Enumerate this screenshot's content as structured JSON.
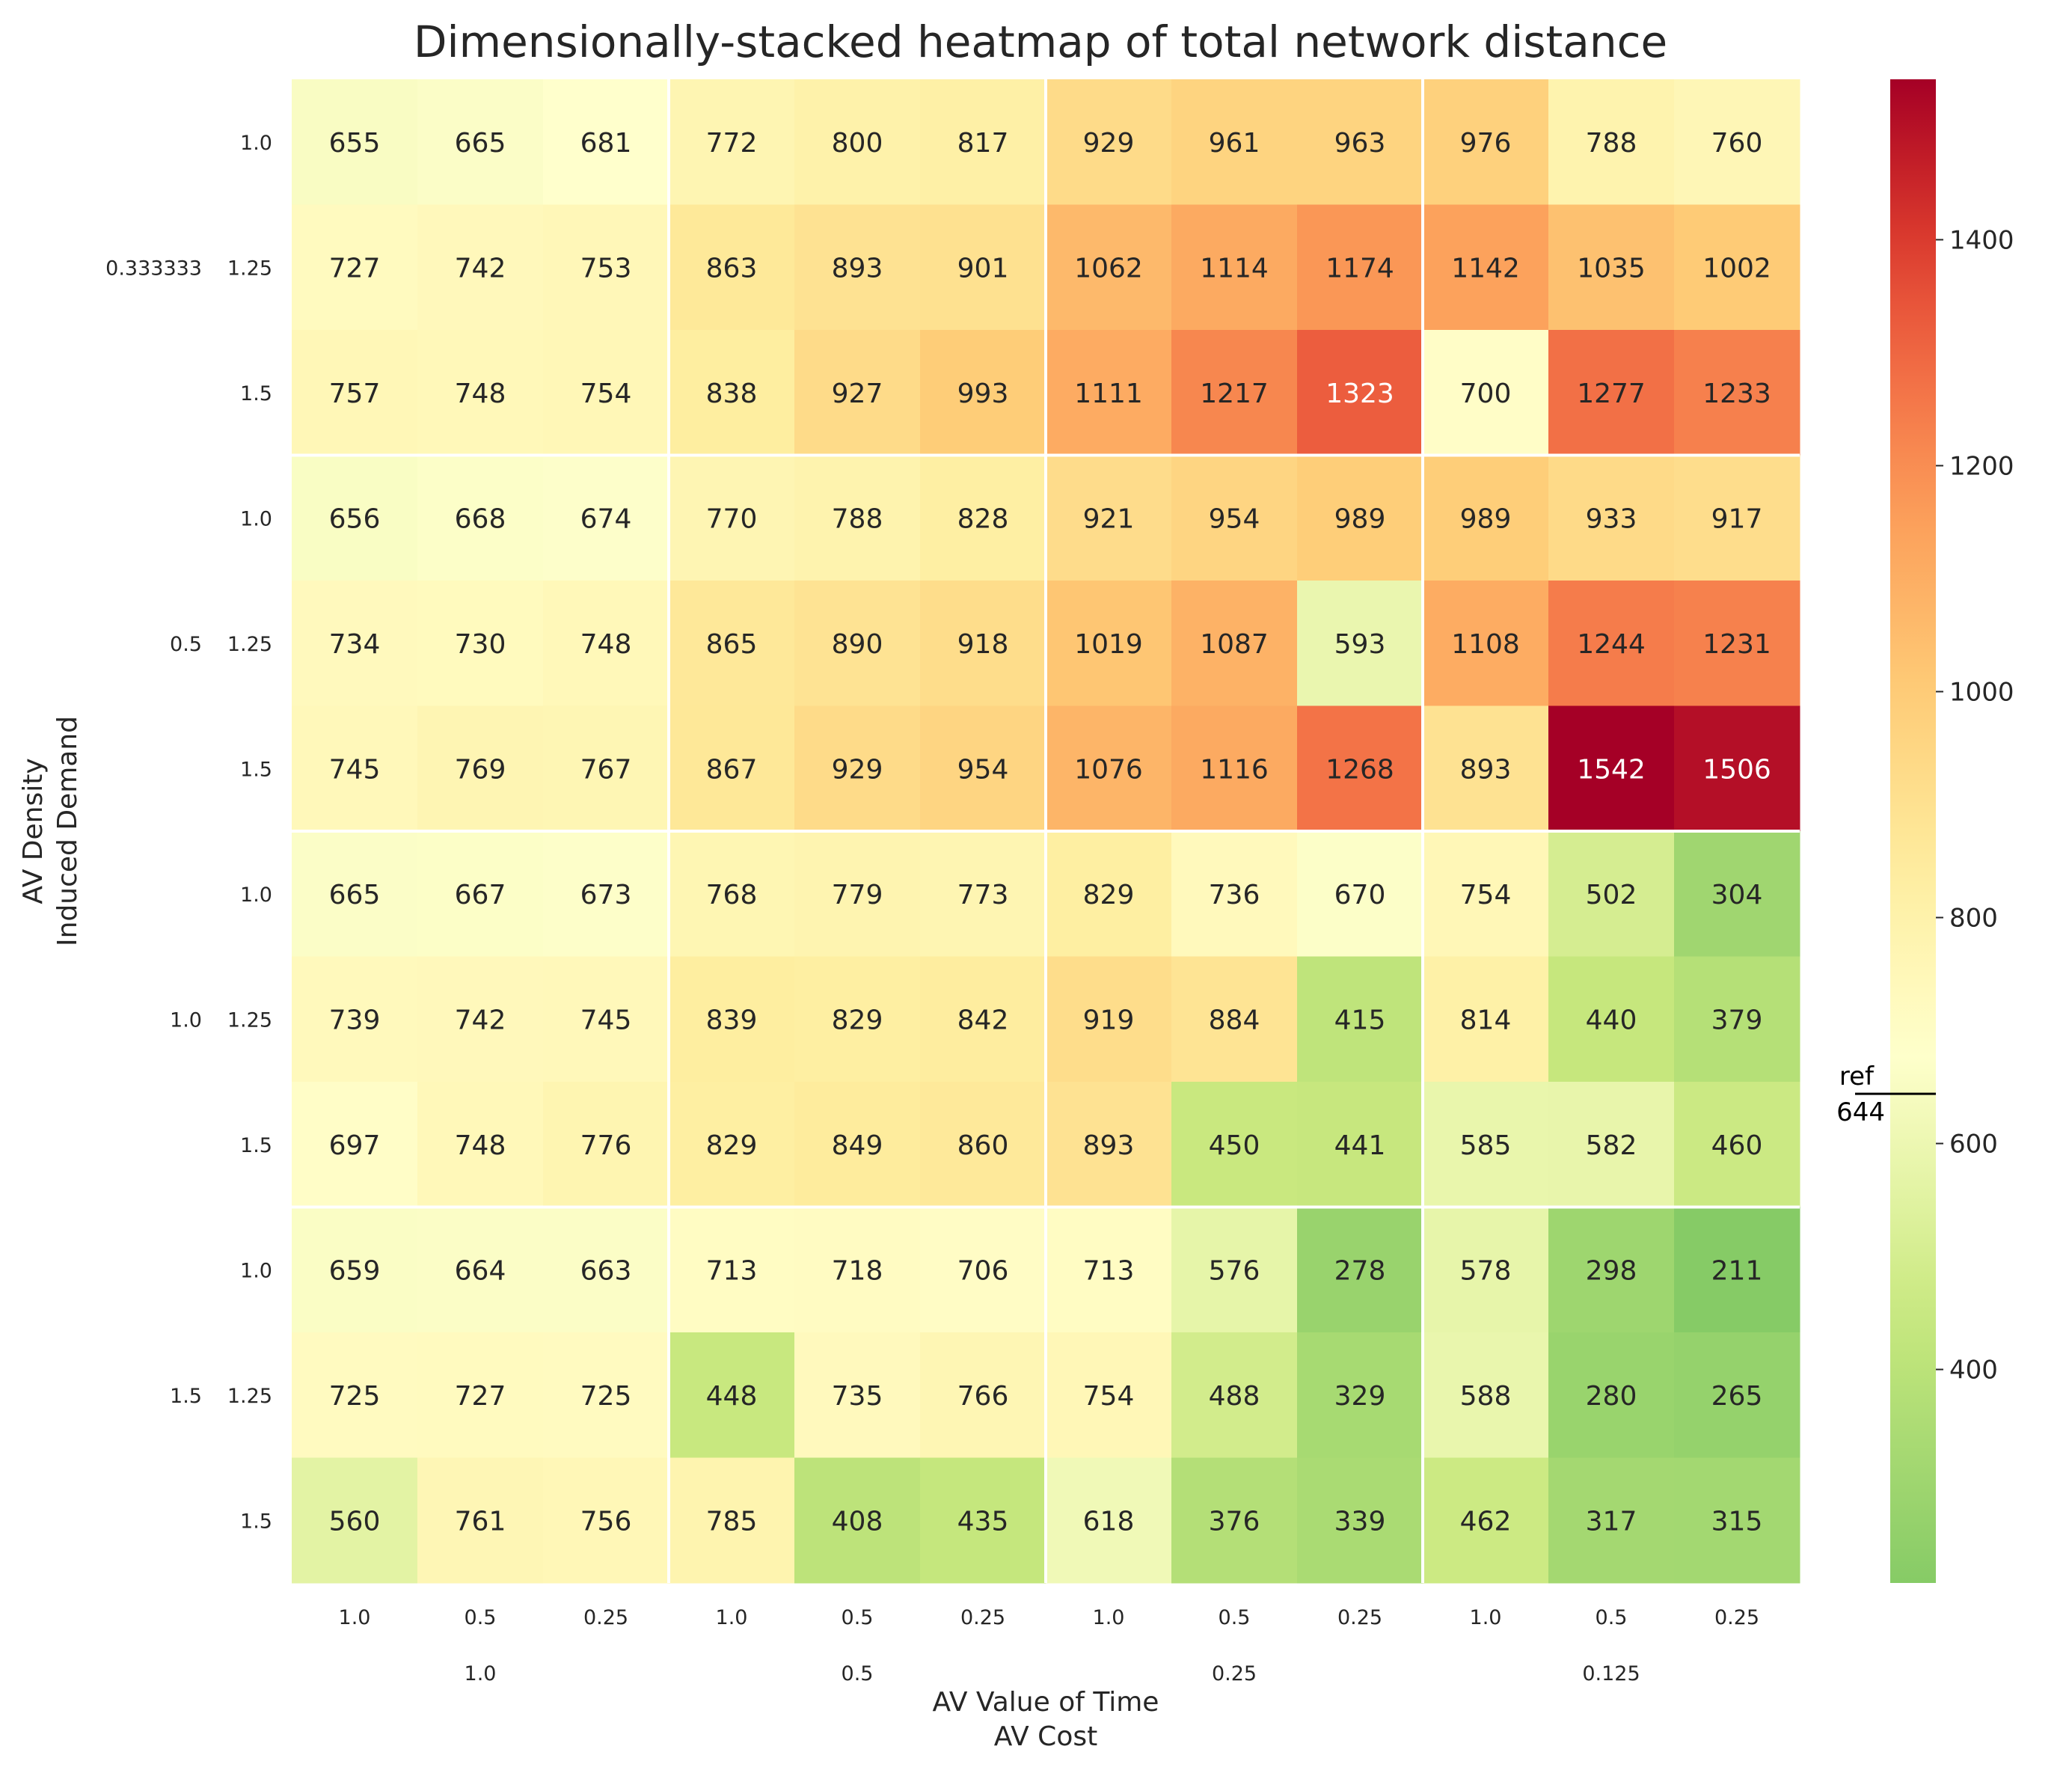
{
  "chart_data": {
    "type": "heatmap",
    "title": "Dimensionally-stacked heatmap of total network distance",
    "xlabel": [
      "AV Value of Time",
      "AV Cost"
    ],
    "ylabel": [
      "AV Density",
      "Induced Demand"
    ],
    "x_outer": [
      "1.0",
      "0.5",
      "0.25",
      "0.125"
    ],
    "x_inner": [
      "1.0",
      "0.5",
      "0.25"
    ],
    "y_outer": [
      "0.333333",
      "0.5",
      "1.0",
      "1.5"
    ],
    "y_inner": [
      "1.0",
      "1.25",
      "1.5"
    ],
    "values": [
      [
        655,
        665,
        681,
        772,
        800,
        817,
        929,
        961,
        963,
        976,
        788,
        760
      ],
      [
        727,
        742,
        753,
        863,
        893,
        901,
        1062,
        1114,
        1174,
        1142,
        1035,
        1002
      ],
      [
        757,
        748,
        754,
        838,
        927,
        993,
        1111,
        1217,
        1323,
        700,
        1277,
        1233
      ],
      [
        656,
        668,
        674,
        770,
        788,
        828,
        921,
        954,
        989,
        989,
        933,
        917
      ],
      [
        734,
        730,
        748,
        865,
        890,
        918,
        1019,
        1087,
        593,
        1108,
        1244,
        1231
      ],
      [
        745,
        769,
        767,
        867,
        929,
        954,
        1076,
        1116,
        1268,
        893,
        1542,
        1506
      ],
      [
        665,
        667,
        673,
        768,
        779,
        773,
        829,
        736,
        670,
        754,
        502,
        304
      ],
      [
        739,
        742,
        745,
        839,
        829,
        842,
        919,
        884,
        415,
        814,
        440,
        379
      ],
      [
        697,
        748,
        776,
        829,
        849,
        860,
        893,
        450,
        441,
        585,
        582,
        460
      ],
      [
        659,
        664,
        663,
        713,
        718,
        706,
        713,
        576,
        278,
        578,
        298,
        211
      ],
      [
        725,
        727,
        725,
        448,
        735,
        766,
        754,
        488,
        329,
        588,
        280,
        265
      ],
      [
        560,
        761,
        756,
        785,
        408,
        435,
        618,
        376,
        339,
        462,
        317,
        315
      ]
    ],
    "colormap": "RdYlGn_r",
    "vmin": 211,
    "vmax": 1542,
    "colorbar_ticks": [
      400,
      600,
      800,
      1000,
      1200,
      1400
    ],
    "reference": {
      "label": "ref",
      "value": 644
    },
    "grid": false
  }
}
